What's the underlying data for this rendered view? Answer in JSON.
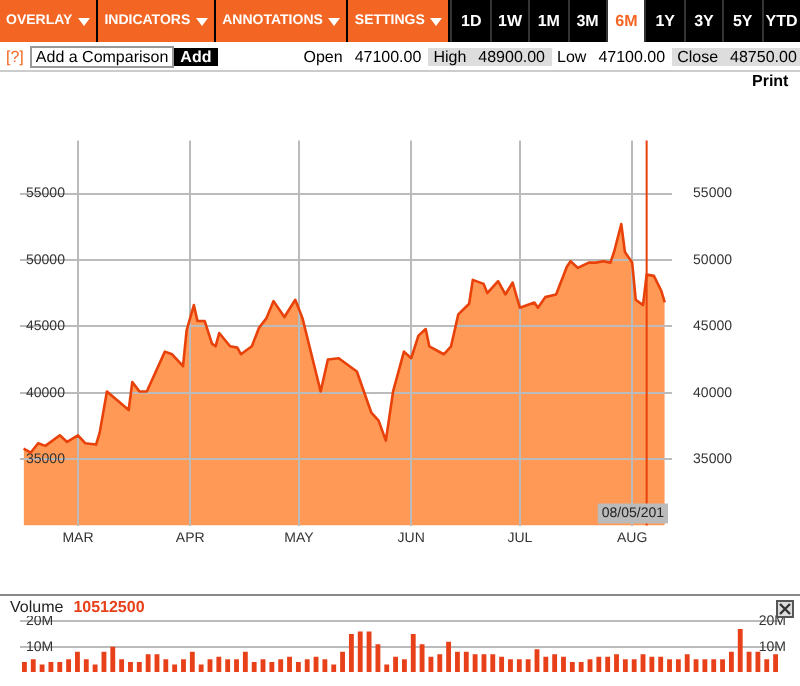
{
  "chart_data": [
    {
      "type": "other",
      "annotations": [
        "OVERLAY",
        "INDICATORS",
        "ANNOTATIONS",
        "SETTINGS",
        "1D",
        "1W",
        "1M",
        "3M",
        "6M",
        "1Y",
        "3Y",
        "5Y",
        "YTD",
        "[?]",
        "Add a Comparison",
        "Add",
        "Open",
        "47100.00",
        "High",
        "48900.00",
        "Low",
        "47100.00",
        "Close",
        "48750.00",
        "Print"
      ]
    },
    {
      "type": "area",
      "grid": true,
      "xlim": [
        "--02-14",
        "--08-12"
      ],
      "xticks": [
        {
          "value": "--03-01",
          "label": "MAR"
        },
        {
          "value": "--04-01",
          "label": "APR"
        },
        {
          "value": "--05-01",
          "label": "MAY"
        },
        {
          "value": "--06-01",
          "label": "JUN"
        },
        {
          "value": "--07-01",
          "label": "JUL"
        },
        {
          "value": "--08-01",
          "label": "AUG"
        }
      ],
      "ylim": [
        30000,
        59000
      ],
      "yticks": [
        35000,
        40000,
        45000,
        50000,
        55000
      ],
      "y2lim": [
        30000,
        59000
      ],
      "y2ticks": [
        35000,
        40000,
        45000,
        50000,
        55000
      ],
      "ref_lines": [
        {
          "axis": "x",
          "value": "--08-05",
          "label": "08/05/201",
          "color": "#e8410a"
        }
      ],
      "series": [
        {
          "color": "#ff9955",
          "x": [
            "--02-15",
            "--02-17",
            "--02-19",
            "--02-21",
            "--02-25",
            "--02-27",
            "--03-01",
            "--03-03",
            "--03-06",
            "--03-07",
            "--03-09",
            "--03-15",
            "--03-16",
            "--03-18",
            "--03-20",
            "--03-25",
            "--03-27",
            "--03-30",
            "--03-31",
            "--04-02",
            "--04-03",
            "--04-05",
            "--04-07",
            "--04-08",
            "--04-09",
            "--04-12",
            "--04-14",
            "--04-15",
            "--04-18",
            "--04-20",
            "--04-22",
            "--04-24",
            "--04-27",
            "--04-30",
            "--05-02",
            "--05-07",
            "--05-09",
            "--05-12",
            "--05-15",
            "--05-17",
            "--05-21",
            "--05-23",
            "--05-25",
            "--05-27",
            "--05-30",
            "--06-01",
            "--06-03",
            "--06-05",
            "--06-06",
            "--06-10",
            "--06-12",
            "--06-14",
            "--06-17",
            "--06-18",
            "--06-21",
            "--06-22",
            "--06-25",
            "--06-27",
            "--06-29",
            "--07-01",
            "--07-05",
            "--07-06",
            "--07-08",
            "--07-11",
            "--07-14",
            "--07-15",
            "--07-17",
            "--07-20",
            "--07-22",
            "--07-24",
            "--07-26",
            "--07-27",
            "--07-29",
            "--07-30",
            "--08-01",
            "--08-02",
            "--08-04",
            "--08-05",
            "--08-07",
            "--08-09",
            "--08-10"
          ],
          "values": [
            35800,
            35500,
            36200,
            36000,
            36800,
            36300,
            36800,
            36200,
            36100,
            37000,
            40100,
            38700,
            40800,
            40100,
            40100,
            43100,
            42900,
            42000,
            44700,
            46600,
            45400,
            45400,
            43700,
            43500,
            44500,
            43500,
            43400,
            42900,
            43500,
            44900,
            45600,
            46900,
            45700,
            47000,
            45600,
            40100,
            42500,
            42600,
            42000,
            41600,
            38500,
            37900,
            36400,
            40100,
            43100,
            42600,
            44300,
            44800,
            43500,
            42900,
            43500,
            45900,
            46700,
            48500,
            48200,
            47500,
            48400,
            47400,
            48300,
            46400,
            46800,
            46400,
            47200,
            47400,
            49500,
            49900,
            49400,
            49800,
            49800,
            49900,
            49800,
            50600,
            52700,
            50600,
            49800,
            47000,
            46600,
            48900,
            48800,
            47700,
            46800
          ]
        }
      ]
    },
    {
      "type": "bar",
      "title": "Volume",
      "annotations": [
        "10512500"
      ],
      "grid": "y",
      "ylim": [
        0,
        22
      ],
      "yticks": [
        {
          "value": 10,
          "label": "10M"
        },
        {
          "value": 20,
          "label": "20M"
        }
      ],
      "y2lim": [
        0,
        22
      ],
      "y2ticks": [
        {
          "value": 10,
          "label": "10M"
        },
        {
          "value": 20,
          "label": "20M"
        }
      ],
      "categories": [
        null,
        null,
        null,
        null,
        null,
        null,
        null,
        null,
        null,
        null,
        null,
        null,
        null,
        null,
        null,
        null,
        null,
        null,
        null,
        null,
        null,
        null,
        null,
        null,
        null,
        null,
        null,
        null,
        null,
        null,
        null,
        null,
        null,
        null,
        null,
        null,
        null,
        null,
        null,
        null,
        null,
        null,
        null,
        null,
        null,
        null,
        null,
        null,
        null,
        null,
        null,
        null,
        null,
        null,
        null,
        null,
        null,
        null,
        null,
        null,
        null,
        null,
        null,
        null,
        null,
        null,
        null,
        null,
        null,
        null,
        null,
        null,
        null,
        null,
        null,
        null,
        null,
        null,
        null,
        null,
        null,
        null,
        null,
        null,
        null,
        null
      ],
      "color": "#e8411a",
      "values": [
        4,
        5,
        3,
        4,
        4,
        5,
        8,
        5,
        3,
        8,
        10,
        5,
        4,
        4,
        7,
        7,
        5,
        3,
        5,
        8,
        3,
        5,
        6,
        5,
        5,
        8,
        4,
        5,
        4,
        5,
        6,
        4,
        5,
        6,
        5,
        3,
        8,
        15,
        16,
        16,
        11,
        3,
        6,
        5,
        15,
        11,
        6,
        7,
        12,
        8,
        8,
        7,
        7,
        7,
        6,
        5,
        5,
        5,
        9,
        6,
        7,
        6,
        4,
        4,
        5,
        6,
        6,
        7,
        5,
        5,
        7,
        6,
        6,
        5,
        5,
        7,
        5,
        5,
        5,
        5,
        8,
        17,
        8,
        8,
        5,
        7
      ]
    }
  ]
}
